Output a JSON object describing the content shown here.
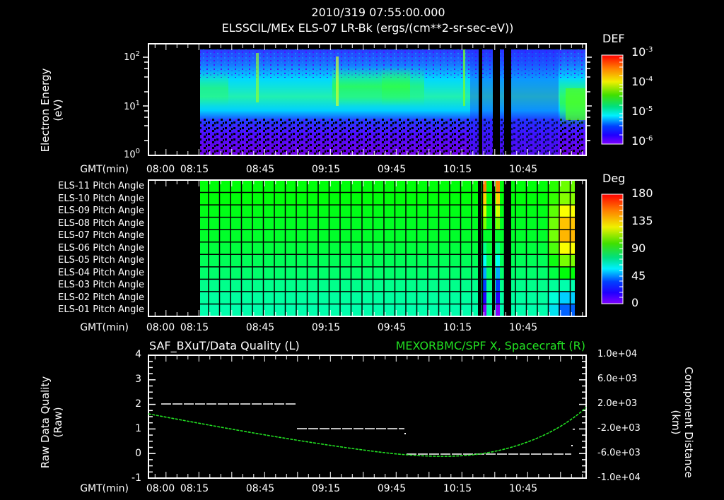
{
  "header": {
    "datetime": "2010/319 07:55:00.000",
    "title": "ELSSCIL/MEx ELS-07 LR-Bk  (ergs/(cm**2-sr-sec-eV))"
  },
  "time_axis": {
    "label": "GMT(min)",
    "ticks": [
      "08:00",
      "08:15",
      "08:45",
      "09:15",
      "09:45",
      "10:15",
      "10:45"
    ]
  },
  "colors": {
    "background": "#000000",
    "axes": "#ffffff",
    "secondary_series": "#22e022"
  },
  "chart_data": [
    {
      "type": "heatmap",
      "title": "ELSSCIL/MEx ELS-07 LR-Bk  (ergs/(cm**2-sr-sec-eV))",
      "ylabel": "Electron Energy (eV)",
      "xlabel": "GMT(min)",
      "yscale": "log",
      "ylim": [
        1,
        150
      ],
      "yticks": [
        "10^0",
        "10^1",
        "10^2"
      ],
      "x_ticks": [
        "08:00",
        "08:15",
        "08:45",
        "09:15",
        "09:45",
        "10:15",
        "10:45"
      ],
      "data_start": "08:15",
      "colorbar": {
        "label": "DEF",
        "scale": "log",
        "range": [
          1e-06,
          0.001
        ],
        "ticks": [
          "10^-3",
          "10^-4",
          "10^-5",
          "10^-6"
        ]
      },
      "features": [
        "Band of elevated flux (~1e-4.5) between ~5 and ~50 eV from 08:15 to ~10:15",
        "Stronger green (~1e-4) band around 20–40 eV near 09:20–09:50",
        "Data gaps (black vertical stripes) near 10:20, 10:27, 10:31",
        "Strong green flux at 4–20 eV after ~11:00"
      ]
    },
    {
      "type": "heatmap",
      "title": "ELS anode pitch angles",
      "xlabel": "GMT(min)",
      "rows": [
        "ELS-11 Pitch Angle",
        "ELS-10 Pitch Angle",
        "ELS-09 Pitch Angle",
        "ELS-08 Pitch Angle",
        "ELS-07 Pitch Angle",
        "ELS-06 Pitch Angle",
        "ELS-05 Pitch Angle",
        "ELS-04 Pitch Angle",
        "ELS-03 Pitch Angle",
        "ELS-02 Pitch Angle",
        "ELS-01 Pitch Angle"
      ],
      "row_values_deg_approx": [
        100,
        100,
        98,
        96,
        95,
        92,
        88,
        85,
        80,
        77,
        75
      ],
      "late_column_values_deg_approx": [
        118,
        122,
        140,
        150,
        152,
        140,
        120,
        100,
        75,
        55,
        38
      ],
      "colorbar": {
        "label": "Deg",
        "range": [
          0,
          180
        ],
        "ticks": [
          "180",
          "135",
          "90",
          "45",
          "0"
        ]
      },
      "data_start": "08:15",
      "data_end": "11:07"
    },
    {
      "type": "line",
      "title_left": "SAF_BXuT/Data Quality (L)",
      "title_right": "MEXORBMC/SPF X, Spacecraft (R)",
      "ylabel_left": "Raw Data Quality (Raw)",
      "ylabel_right": "Component Distance (km)",
      "ylim_left": [
        -1,
        4
      ],
      "yticks_left": [
        "4",
        "3",
        "2",
        "1",
        "0",
        "-1"
      ],
      "ylim_right": [
        -10000,
        10000
      ],
      "yticks_right": [
        "1.0e+04",
        "6.0e+03",
        "2.0e+03",
        "-2.0e+03",
        "-6.0e+03",
        "-1.0e+04"
      ],
      "xlabel": "GMT(min)",
      "x_ticks": [
        "08:00",
        "08:15",
        "08:45",
        "09:15",
        "09:45",
        "10:15",
        "10:45"
      ],
      "series": [
        {
          "name": "Data Quality (L)",
          "color": "#ffffff",
          "x": [
            "08:00",
            "09:02",
            "09:02",
            "09:52",
            "09:52",
            "11:05"
          ],
          "values": [
            2,
            2,
            1,
            1,
            0,
            0
          ]
        },
        {
          "name": "SPF X Spacecraft (R)",
          "color": "#22e022",
          "x": [
            "07:52",
            "08:15",
            "08:45",
            "09:15",
            "09:45",
            "10:05",
            "10:20",
            "10:45",
            "11:00",
            "11:12"
          ],
          "values": [
            500,
            -1000,
            -2800,
            -4500,
            -5800,
            -6100,
            -5700,
            -3500,
            -500,
            2200
          ]
        }
      ]
    }
  ],
  "top_panel": {
    "ylabel_line1": "Electron Energy",
    "ylabel_line2": "(eV)",
    "ytick_base": "10",
    "ytick_exps": [
      "2",
      "1",
      "0"
    ],
    "colorbar_label": "DEF",
    "colorbar_base": "10",
    "colorbar_exps": [
      "-3",
      "-4",
      "-5",
      "-6"
    ]
  },
  "middle_panel": {
    "rows": [
      "ELS-11 Pitch Angle",
      "ELS-10 Pitch Angle",
      "ELS-09 Pitch Angle",
      "ELS-08 Pitch Angle",
      "ELS-07 Pitch Angle",
      "ELS-06 Pitch Angle",
      "ELS-05 Pitch Angle",
      "ELS-04 Pitch Angle",
      "ELS-03 Pitch Angle",
      "ELS-02 Pitch Angle",
      "ELS-01 Pitch Angle"
    ],
    "colorbar_label": "Deg",
    "colorbar_ticks": [
      "180",
      "135",
      "90",
      "45",
      "0"
    ]
  },
  "bottom_panel": {
    "title_left": "SAF_BXuT/Data Quality (L)",
    "title_right": "MEXORBMC/SPF X, Spacecraft (R)",
    "ylabel_left_line1": "Raw Data Quality",
    "ylabel_left_line2": "(Raw)",
    "ylabel_right_line1": "Component Distance",
    "ylabel_right_line2": "(km)",
    "yticks_left": [
      "4",
      "3",
      "2",
      "1",
      "0",
      "-1"
    ],
    "yticks_right": [
      "1.0e+04",
      "6.0e+03",
      "2.0e+03",
      "-2.0e+03",
      "-6.0e+03",
      "-1.0e+04"
    ]
  }
}
